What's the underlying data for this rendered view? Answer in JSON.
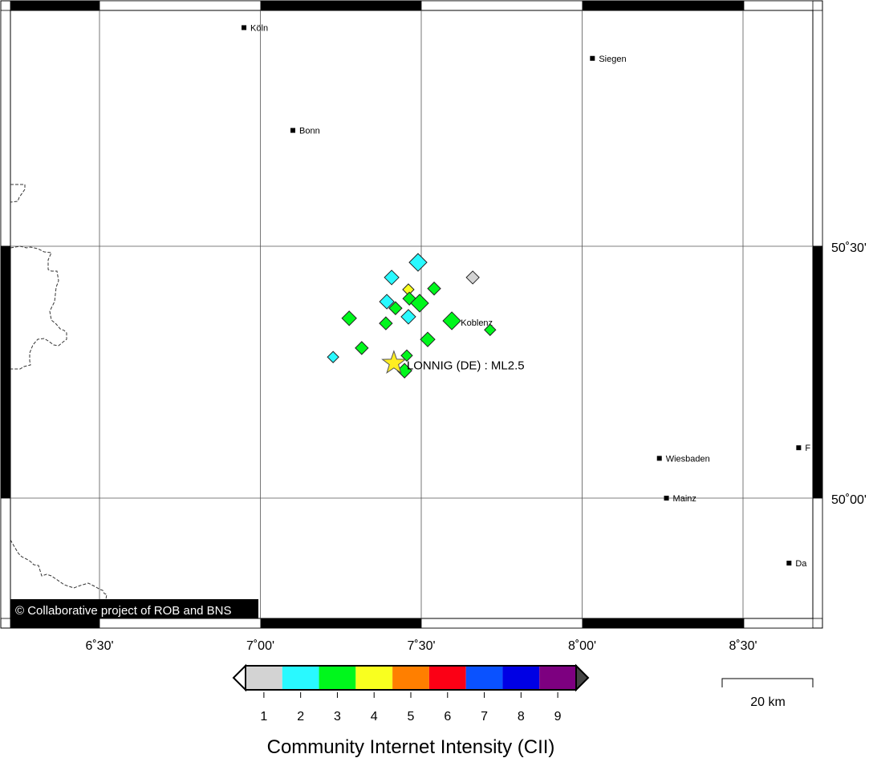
{
  "map": {
    "lon_ticks": [
      {
        "value": 6.5,
        "label": "6˚30'"
      },
      {
        "value": 7.0,
        "label": "7˚00'"
      },
      {
        "value": 7.5,
        "label": "7˚30'"
      },
      {
        "value": 8.0,
        "label": "8˚00'"
      },
      {
        "value": 8.5,
        "label": "8˚30'"
      }
    ],
    "lat_ticks": [
      {
        "value": 50.5,
        "label": "50˚30'"
      },
      {
        "value": 50.0,
        "label": "50˚00'"
      }
    ],
    "cities": [
      {
        "name": "Köln",
        "lon": 6.949,
        "lat": 50.934
      },
      {
        "name": "Siegen",
        "lon": 8.032,
        "lat": 50.873
      },
      {
        "name": "Bonn",
        "lon": 7.101,
        "lat": 50.73
      },
      {
        "name": "Koblenz",
        "lon": 7.603,
        "lat": 50.349
      },
      {
        "name": "Wiesbaden",
        "lon": 8.24,
        "lat": 50.079
      },
      {
        "name": "Mainz",
        "lon": 8.262,
        "lat": 50.0
      },
      {
        "name": "F",
        "lon": 8.673,
        "lat": 50.1
      },
      {
        "name": "Da",
        "lon": 8.643,
        "lat": 49.871
      }
    ],
    "epicenter": {
      "label": "LONNIG (DE) : ML2.5",
      "lon": 7.415,
      "lat": 50.268,
      "color": "#ffee22"
    },
    "reports": [
      {
        "lon": 7.49,
        "lat": 50.468,
        "cii": 2
      },
      {
        "lon": 7.408,
        "lat": 50.438,
        "cii": 2
      },
      {
        "lon": 7.66,
        "lat": 50.438,
        "cii": 1
      },
      {
        "lon": 7.46,
        "lat": 50.414,
        "cii": 4
      },
      {
        "lon": 7.54,
        "lat": 50.416,
        "cii": 3
      },
      {
        "lon": 7.463,
        "lat": 50.396,
        "cii": 3
      },
      {
        "lon": 7.495,
        "lat": 50.387,
        "cii": 3
      },
      {
        "lon": 7.393,
        "lat": 50.39,
        "cii": 2
      },
      {
        "lon": 7.42,
        "lat": 50.377,
        "cii": 3
      },
      {
        "lon": 7.276,
        "lat": 50.357,
        "cii": 3
      },
      {
        "lon": 7.39,
        "lat": 50.347,
        "cii": 3
      },
      {
        "lon": 7.46,
        "lat": 50.36,
        "cii": 2
      },
      {
        "lon": 7.595,
        "lat": 50.352,
        "cii": 3
      },
      {
        "lon": 7.714,
        "lat": 50.334,
        "cii": 3
      },
      {
        "lon": 7.52,
        "lat": 50.315,
        "cii": 3
      },
      {
        "lon": 7.315,
        "lat": 50.298,
        "cii": 3
      },
      {
        "lon": 7.226,
        "lat": 50.28,
        "cii": 2
      },
      {
        "lon": 7.455,
        "lat": 50.283,
        "cii": 3
      },
      {
        "lon": 7.448,
        "lat": 50.253,
        "cii": 3
      }
    ],
    "copyright": "© Collaborative project of ROB and BNS",
    "scale_bar": "20 km"
  },
  "legend": {
    "title": "Community Internet Intensity (CII)",
    "classes": [
      {
        "label": "1",
        "color": "#d3d3d3"
      },
      {
        "label": "2",
        "color": "#29f9ff"
      },
      {
        "label": "3",
        "color": "#00f71c"
      },
      {
        "label": "4",
        "color": "#f9ff1f"
      },
      {
        "label": "5",
        "color": "#ff7f00"
      },
      {
        "label": "6",
        "color": "#fb0015"
      },
      {
        "label": "7",
        "color": "#0a52ff"
      },
      {
        "label": "8",
        "color": "#0000e4"
      },
      {
        "label": "9",
        "color": "#7d0080"
      }
    ],
    "below_color": "#ffffff",
    "above_color": "#444444"
  }
}
